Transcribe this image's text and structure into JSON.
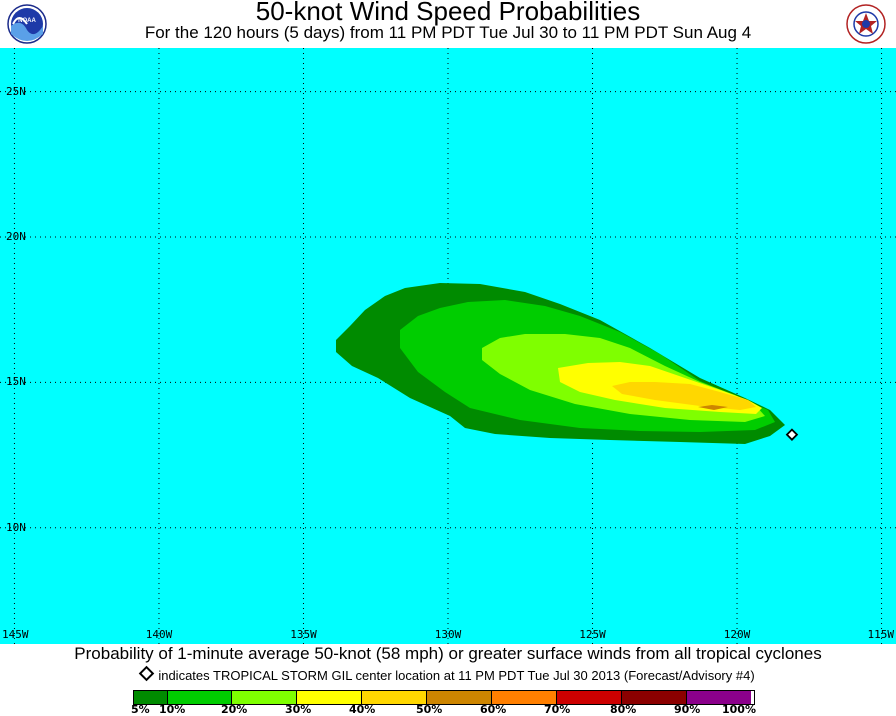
{
  "title": "50-knot Wind Speed Probabilities",
  "subtitle": "For the 120 hours (5 days) from 11 PM PDT Tue Jul 30 to 11 PM PDT Sun Aug 4",
  "logos": {
    "left": "noaa-logo",
    "right": "nws-logo"
  },
  "map": {
    "background_color": "#00ffff",
    "grid": "dotted",
    "lon_range": [
      -145.5,
      -114.5
    ],
    "lat_range": [
      6.0,
      26.5
    ],
    "lat_labels": [
      "25N",
      "20N",
      "15N",
      "10N"
    ],
    "lon_labels": [
      "145W",
      "140W",
      "135W",
      "130W",
      "125W",
      "120W",
      "115W"
    ],
    "storm_position": {
      "lon": -118.1,
      "lat": 13.2
    }
  },
  "caption": "Probability of 1-minute average 50-knot (58 mph) or greater surface winds from all tropical cyclones",
  "advisory_note": "indicates TROPICAL STORM GIL center location at 11 PM PDT Tue Jul 30 2013 (Forecast/Advisory #4)",
  "legend": {
    "labels": [
      "5%",
      "10%",
      "20%",
      "30%",
      "40%",
      "50%",
      "60%",
      "70%",
      "80%",
      "90%",
      "100%"
    ],
    "colors": [
      "#008b00",
      "#00cd00",
      "#7fff00",
      "#ffff00",
      "#ffd700",
      "#cd8500",
      "#ff7f00",
      "#cd0000",
      "#8b0000",
      "#8b008b"
    ]
  }
}
